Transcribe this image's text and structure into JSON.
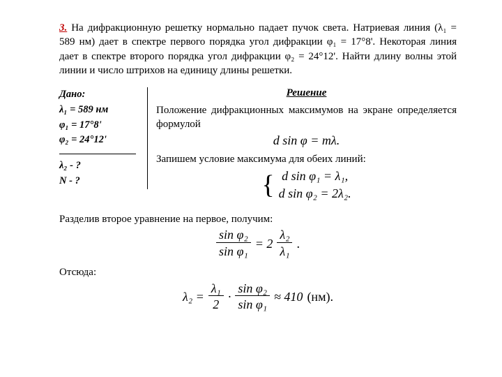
{
  "problem": {
    "number": "3.",
    "statement": "На дифракционную решетку нормально падает пучок света. Натриевая линия (λ₁ = 589 нм) дает в спектре первого порядка угол дифракции φ₁ = 17°8'. Некоторая линия дает в спектре второго порядка угол дифракции φ₂ = 24°12'. Найти длину волны  этой линии и число штрихов  на единицу длины решетки."
  },
  "given": {
    "title": "Дано:",
    "l1": "λ₁ = 589 нм",
    "l2": "φ₁ = 17°8'",
    "l3": "φ₂ = 24°12'",
    "q1": "λ₂  - ?",
    "q2": "N - ?"
  },
  "solution": {
    "title": "Решение",
    "t1": "Положение дифракционных максимумов на экране определяется формулой",
    "f1": "d sin φ = mλ.",
    "t2": "Запишем условие максимума для обеих линий:",
    "sys1": "d sin φ₁ = λ₁,",
    "sys2": "d sin φ₂ = 2λ₂.",
    "t3": "Разделив второе уравнение на первое, получим:",
    "frac1_num": "sin φ₂",
    "frac1_den": "sin φ₁",
    "frac1_eq": " = 2",
    "frac1b_num": "λ₂",
    "frac1b_den": "λ₁",
    "dot": ".",
    "t4": "Отсюда:",
    "lam2": "λ₂ = ",
    "f2a_num": "λ₁",
    "f2a_den": "2",
    "cdot": "·",
    "f2b_num": "sin φ₂",
    "f2b_den": "sin φ₁",
    "approx": " ≈ 410",
    "unit": " (нм)."
  },
  "style": {
    "accent_color": "#c00000",
    "text_color": "#000000",
    "background": "#ffffff",
    "font_family": "Times New Roman",
    "base_fontsize": 15,
    "formula_fontsize": 18
  }
}
